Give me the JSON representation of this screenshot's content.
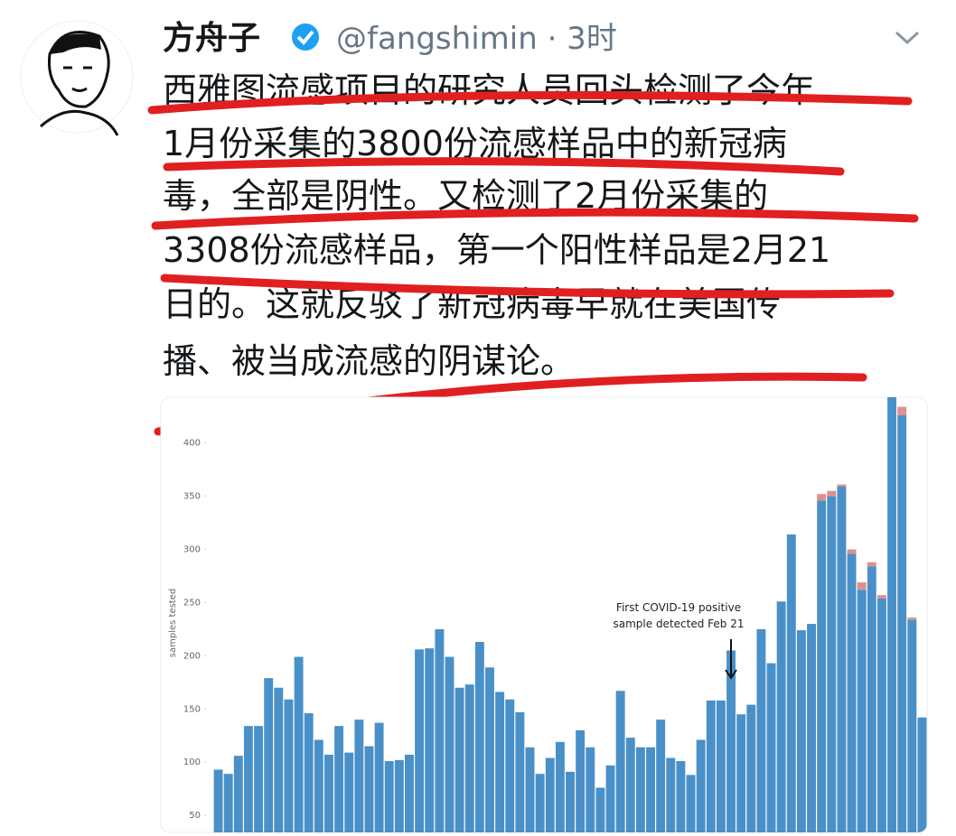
{
  "tweet": {
    "name": "方舟子",
    "handle": "@fangshimin · 3时",
    "lines": [
      "西雅图流感项目的研究人员回头检测了今年",
      "1月份采集的3800份流感样品中的新冠病",
      "毒，全部是阴性。又检测了2月份采集的",
      "3308份流感样品，第一个阳性样品是2月21",
      "日的。这就反驳了新冠病毒早就在美国传",
      "播、被当成流感的阴谋论。"
    ]
  },
  "chart_data": {
    "type": "bar",
    "ylabel": "samples tested",
    "annotation": [
      "First COVID-19 positive",
      "sample detected Feb 21"
    ],
    "ylim": [
      34,
      443
    ],
    "yticks": [
      50,
      100,
      150,
      200,
      250,
      300,
      350,
      400
    ],
    "series": [
      {
        "color": "#4a90c8",
        "values": [
          59,
          55,
          72,
          100,
          100,
          145,
          136,
          125,
          165,
          112,
          87,
          73,
          100,
          75,
          106,
          81,
          103,
          67,
          68,
          73,
          172,
          173,
          191,
          165,
          136,
          139,
          179,
          155,
          132,
          125,
          113,
          80,
          55,
          70,
          85,
          57,
          96,
          80,
          42,
          63,
          133,
          89,
          80,
          80,
          106,
          70,
          67,
          54,
          87,
          124,
          124,
          171,
          111,
          120,
          191,
          159,
          217,
          280,
          190,
          196,
          312,
          316,
          325,
          262,
          228,
          250,
          220,
          445,
          392,
          200,
          108
        ]
      },
      {
        "color": "#e0908a",
        "values": [
          0,
          0,
          0,
          0,
          0,
          0,
          0,
          0,
          0,
          0,
          0,
          0,
          0,
          0,
          0,
          0,
          0,
          0,
          0,
          0,
          0,
          0,
          0,
          0,
          0,
          0,
          0,
          0,
          0,
          0,
          0,
          0,
          0,
          0,
          0,
          0,
          0,
          0,
          0,
          0,
          0,
          0,
          0,
          0,
          0,
          0,
          0,
          0,
          0,
          0,
          0,
          0,
          0,
          0,
          0,
          0,
          0,
          0,
          0,
          0,
          6,
          5,
          2,
          4,
          7,
          4,
          3,
          0,
          8,
          2,
          0
        ]
      }
    ]
  }
}
